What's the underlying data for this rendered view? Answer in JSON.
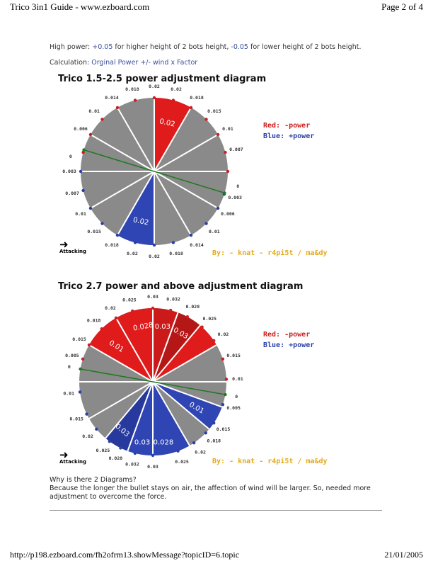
{
  "header": {
    "left": "Trico 3in1 Guide - www.ezboard.com",
    "right": "Page 2 of 4"
  },
  "intro": {
    "high_prefix": "High power: ",
    "high_plus": "+0.05",
    "high_mid": " for higher height of 2 bots height, ",
    "high_minus": "-0.05",
    "high_suffix": " for lower height of 2 bots height.",
    "calc_prefix": "Calculation: ",
    "calc_formula": "Orginal Power +/- wind x Factor"
  },
  "diagrams": [
    {
      "title": "Trico 1.5-2.5 power adjustment diagram",
      "legend_red": "Red: -power",
      "legend_blue": "Blue: +power",
      "credit": "By: - knat - r4pi5t / ma&dy",
      "attacking": "Attacking",
      "red_sector_label": "0.02",
      "blue_sector_label": "0.02",
      "labels": [
        "0.02",
        "0.02",
        "0.018",
        "0.015",
        "0.01",
        "0.007",
        "0",
        "0.003",
        "0.006",
        "0.01",
        "0.014",
        "0.018",
        "0.02",
        "0.02",
        "0.018",
        "0.015",
        "0.01",
        "0.007",
        "0.003",
        "0",
        "0.006",
        "0.01",
        "0.014",
        "0.018"
      ]
    },
    {
      "title": "Trico 2.7 power and above adjustment diagram",
      "legend_red": "Red: -power",
      "legend_blue": "Blue: +power",
      "credit": "By: - knat - r4pi5t / ma&dy",
      "attacking": "Attacking",
      "sector_labels": [
        "0.028",
        "0.03",
        "0.03",
        "0.01",
        "0.01",
        "0.03",
        "0.03",
        "0.028"
      ],
      "labels": [
        "0.03",
        "0.032",
        "0.028",
        "0.025",
        "0.02",
        "0.015",
        "0.01",
        "0",
        "0.005",
        "0.015",
        "0.018",
        "0.02",
        "0.025",
        "0.03",
        "0.032",
        "0.028",
        "0.025",
        "0.02",
        "0.015",
        "0.01",
        "0",
        "0.005",
        "0.015",
        "0.018",
        "0.02",
        "0.025"
      ]
    }
  ],
  "question": "Why is there 2 Diagrams?",
  "answer": "Because the longer the bullet stays on air, the affection of wind will be larger. So, needed more adjustment to overcome the force.",
  "footer": {
    "url": "http://p198.ezboard.com/fh2ofrm13.showMessage?topicID=6.topic",
    "date": "21/01/2005"
  }
}
